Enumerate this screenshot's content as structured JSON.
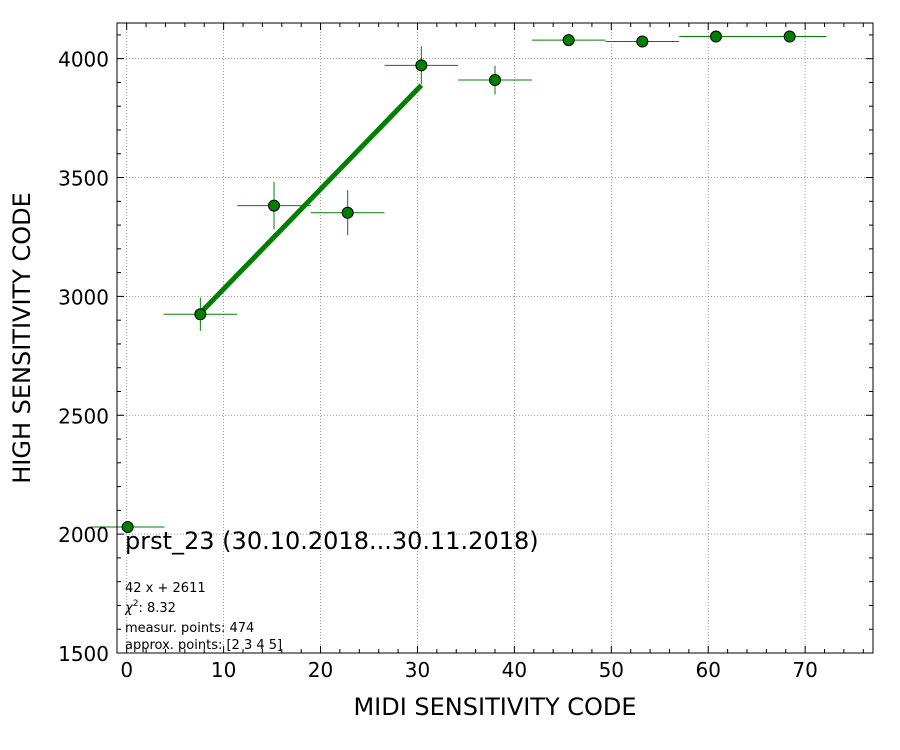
{
  "chart_data": {
    "type": "scatter",
    "title": "prst_23 (30.10.2018...30.11.2018)",
    "xlabel": "MIDI SENSITIVITY CODE",
    "ylabel": "HIGH SENSITIVITY CODE",
    "xlim": [
      -1,
      77
    ],
    "ylim": [
      1500,
      4150
    ],
    "x_ticks": [
      0,
      10,
      20,
      30,
      40,
      50,
      60,
      70
    ],
    "y_ticks": [
      1500,
      2000,
      2500,
      3000,
      3500,
      4000
    ],
    "grid": true,
    "color": "#008000",
    "points": [
      {
        "x": 0.1,
        "y": 2030,
        "xerr": 3.8,
        "yerr": 0
      },
      {
        "x": 7.6,
        "y": 2925,
        "xerr": 3.8,
        "yerr": 70
      },
      {
        "x": 15.2,
        "y": 3382,
        "xerr": 3.8,
        "yerr": 100
      },
      {
        "x": 22.8,
        "y": 3352,
        "xerr": 3.8,
        "yerr": 95
      },
      {
        "x": 30.4,
        "y": 3972,
        "xerr": 3.8,
        "yerr": 80
      },
      {
        "x": 38.0,
        "y": 3910,
        "xerr": 3.8,
        "yerr": 60
      },
      {
        "x": 45.6,
        "y": 4078,
        "xerr": 3.8,
        "yerr": 0
      },
      {
        "x": 53.2,
        "y": 4072,
        "xerr": 3.8,
        "yerr": 0
      },
      {
        "x": 60.8,
        "y": 4093,
        "xerr": 3.8,
        "yerr": 0
      },
      {
        "x": 68.4,
        "y": 4093,
        "xerr": 3.8,
        "yerr": 0
      }
    ],
    "fit_line": {
      "x": [
        7.6,
        30.4
      ],
      "y": [
        2930,
        3888
      ]
    },
    "annotations": {
      "fit": "42 x + 2611",
      "chi2_label": "χ",
      "chi2_sup": "2",
      "chi2_value": ": 8.32",
      "measur": "measur. points: 474",
      "approx": "approx. points: [2 3 4 5]"
    }
  }
}
